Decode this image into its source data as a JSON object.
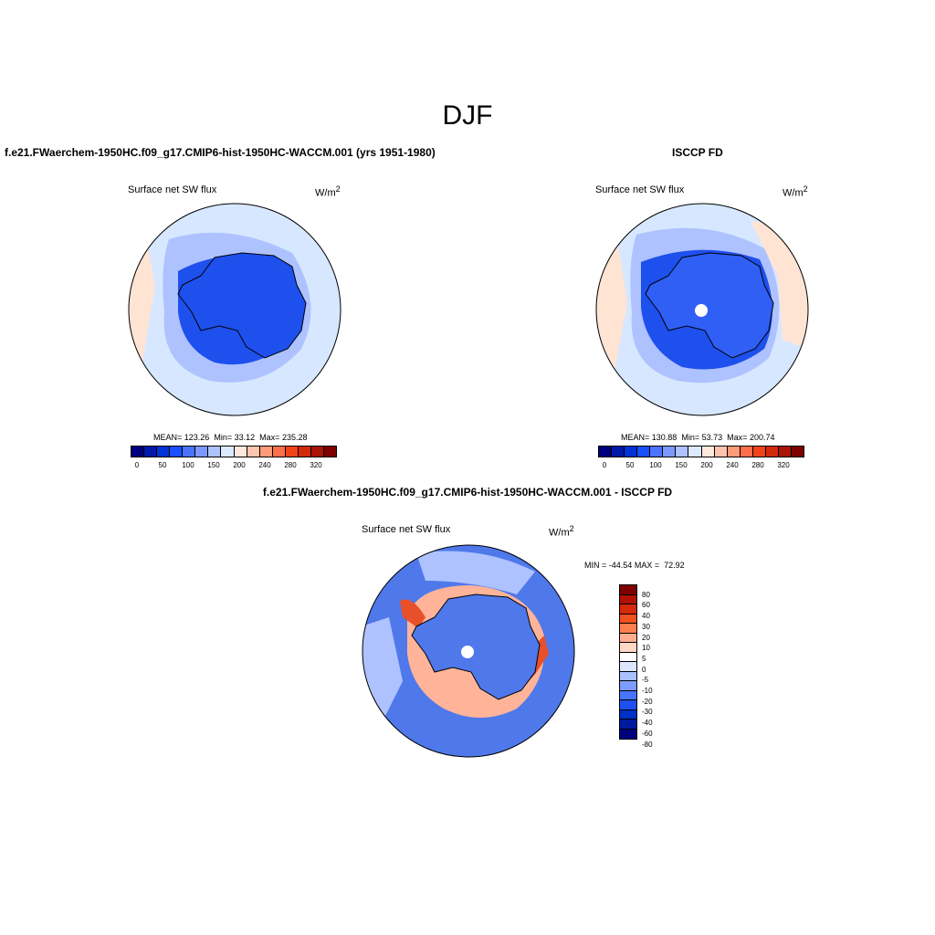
{
  "season": "DJF",
  "model_title": "f.e21.FWaerchem-1950HC.f09_g17.CMIP6-hist-1950HC-WACCM.001 (yrs 1951-1980)",
  "obs_title": "ISCCP FD",
  "diff_title": "f.e21.FWaerchem-1950HC.f09_g17.CMIP6-hist-1950HC-WACCM.001 - ISCCP FD",
  "variable": "Surface net SW flux",
  "units": "W/m",
  "units_sup": "2",
  "model_stats": {
    "mean_label": "MEAN=",
    "mean": "123.26",
    "min_label": "Min=",
    "min": "33.12",
    "max_label": "Max=",
    "max": "235.28"
  },
  "obs_stats": {
    "mean_label": "MEAN=",
    "mean": "130.88",
    "min_label": "Min=",
    "min": "53.73",
    "max_label": "Max=",
    "max": "200.74"
  },
  "diff_stats": {
    "min_label": "MIN =",
    "min": "-44.54",
    "max_label": "MAX =",
    "max": "72.92"
  },
  "abs_colorbar": {
    "colors": [
      "#00007f",
      "#0019a8",
      "#0032d6",
      "#1a4fff",
      "#4b73ff",
      "#7d99ff",
      "#aec2ff",
      "#dce9ff",
      "#ffe8dc",
      "#ffc4ad",
      "#ff9a7a",
      "#ff6e4a",
      "#f2421a",
      "#d12a0a",
      "#a81405",
      "#7f0000"
    ],
    "labels": [
      "0",
      "50",
      "100",
      "150",
      "200",
      "240",
      "280",
      "320"
    ]
  },
  "diff_colorbar": {
    "colors": [
      "#7f0000",
      "#b01205",
      "#d52a0a",
      "#f2501e",
      "#ff7f4f",
      "#ffae8e",
      "#ffd8c6",
      "#ffffff",
      "#dce6ff",
      "#aac0ff",
      "#7e9cff",
      "#4a74ff",
      "#1e50f0",
      "#0030c8",
      "#001a9e",
      "#00007f"
    ],
    "labels": [
      "80",
      "60",
      "40",
      "30",
      "20",
      "10",
      "5",
      "0",
      "-5",
      "-10",
      "-20",
      "-30",
      "-40",
      "-60",
      "-80"
    ]
  },
  "map_colors": {
    "ocean_model": "#d7e7ff",
    "ocean_obs": "#d7e7ff",
    "ocean_diff": "#4f78ea",
    "mid_blue": "#aec2ff",
    "deep_blue": "#1e50ee",
    "ice_model": "#1e50ee",
    "ice_obs": "#2f5ff5",
    "warm": "#ffe4d4",
    "pos_strong": "#e8502a",
    "pos_light": "#ffb49a"
  }
}
